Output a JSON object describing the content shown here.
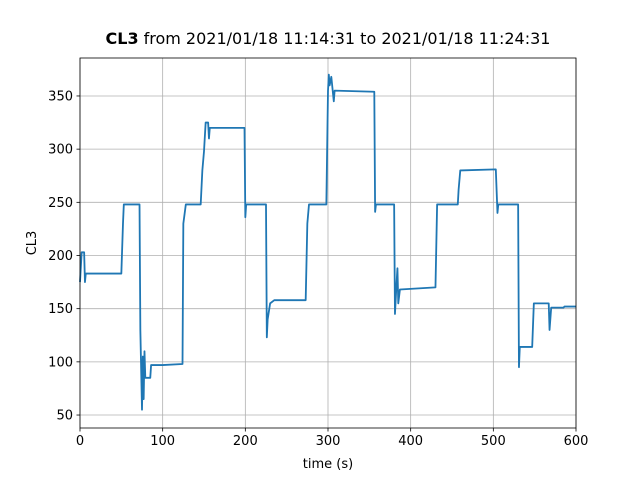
{
  "chart_data": {
    "type": "line",
    "title": [
      "CL3",
      "from 2021/01/18 11:14:31 to 2021/01/18 11:24:31"
    ],
    "x_label": "time (s)",
    "y_label": "CL3",
    "xlim": [
      0,
      600
    ],
    "xticks": [
      0,
      100,
      200,
      300,
      400,
      500,
      600
    ],
    "ylim": [
      37.8,
      385.7
    ],
    "yticks": [
      50,
      100,
      150,
      200,
      250,
      300,
      350
    ],
    "grid": true,
    "series": [
      {
        "color": "#1f77b4",
        "x": [
          0,
          2,
          3,
          5,
          6,
          7,
          50,
          52,
          53,
          72,
          73,
          75,
          76,
          77,
          78,
          79,
          85,
          86,
          100,
          124,
          125,
          128,
          146,
          148,
          150,
          152,
          155,
          156,
          157,
          199,
          200,
          201,
          225,
          226,
          227,
          230,
          235,
          273,
          275,
          277,
          298,
          300,
          301,
          302,
          304,
          307,
          308,
          356,
          357,
          358,
          380,
          381,
          383,
          384,
          385,
          387,
          430,
          432,
          457,
          458,
          460,
          503,
          505,
          506,
          530,
          531,
          532,
          547,
          549,
          567,
          568,
          570,
          585,
          586,
          600
        ],
        "values": [
          175,
          203,
          203,
          203,
          175,
          183,
          183,
          230,
          248,
          248,
          130,
          55,
          105,
          65,
          110,
          85,
          85,
          97,
          97,
          98,
          230,
          248,
          248,
          280,
          298,
          325,
          325,
          310,
          320,
          320,
          236,
          248,
          248,
          123,
          140,
          155,
          158,
          158,
          230,
          248,
          248,
          355,
          370,
          360,
          368,
          345,
          355,
          354,
          241,
          248,
          248,
          145,
          175,
          188,
          155,
          168,
          170,
          248,
          248,
          262,
          280,
          281,
          240,
          248,
          248,
          95,
          114,
          114,
          155,
          155,
          130,
          151,
          151,
          152,
          152
        ]
      }
    ]
  }
}
